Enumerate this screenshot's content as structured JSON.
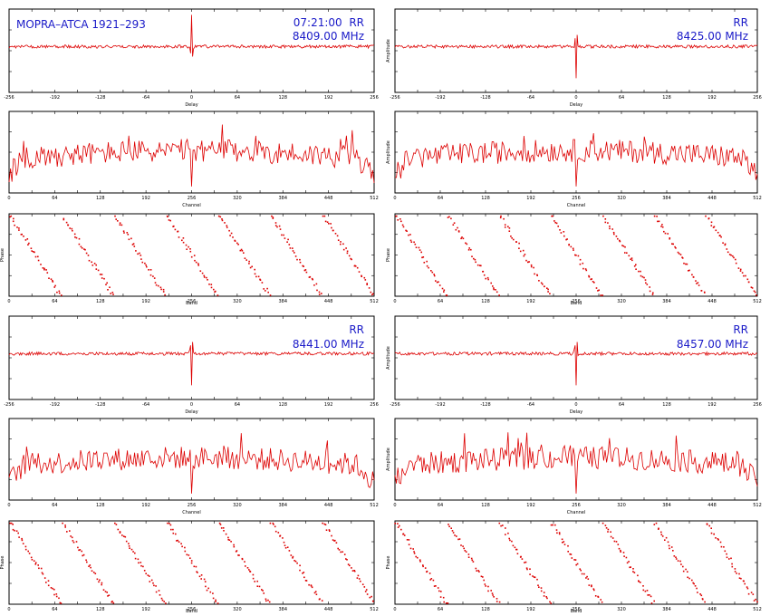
{
  "source": "MOPRA–ATCA 1921–293",
  "colors": {
    "trace": "#dd0000",
    "header_text": "#1a1ac8",
    "axis": "#000000"
  },
  "axis_labels": {
    "delay": "Delay",
    "channel": "Channel",
    "amplitude": "Amplitude",
    "phase": "Phase",
    "band": "Band"
  },
  "blocks": [
    {
      "time": "07:21:00",
      "pol": "RR",
      "freq": "8409.00 MHz"
    },
    {
      "time": "",
      "pol": "RR",
      "freq": "8425.00 MHz"
    },
    {
      "time": "",
      "pol": "RR",
      "freq": "8441.00 MHz"
    },
    {
      "time": "",
      "pol": "RR",
      "freq": "8457.00 MHz"
    }
  ],
  "chart_data": [
    {
      "type": "line",
      "title": "MOPRA–ATCA 1921–293 07:21:00 RR 8409.00 MHz",
      "xlabel": "Delay",
      "ylabel": "",
      "xlim": [
        -256,
        256
      ],
      "peak_x": 0,
      "peak_dir": "up",
      "grid": false,
      "legend": "none"
    },
    {
      "type": "line",
      "xlabel": "Channel",
      "ylabel": "",
      "xlim": [
        0,
        512
      ],
      "ylim": [
        0,
        6
      ],
      "peak_x": 256,
      "grid": false,
      "legend": "none"
    },
    {
      "type": "scatter",
      "xlabel": "Band",
      "ylabel": "Phase",
      "xlim": [
        0,
        512
      ],
      "ylim": [
        -180,
        180
      ],
      "phase_wraps": 7,
      "grid": false,
      "legend": "none"
    },
    {
      "type": "line",
      "title": "RR 8425.00 MHz",
      "xlabel": "Delay",
      "ylabel": "Amplitude",
      "xlim": [
        -256,
        256
      ],
      "peak_x": 0,
      "peak_dir": "down",
      "grid": false,
      "legend": "none"
    },
    {
      "type": "line",
      "xlabel": "Channel",
      "ylabel": "Amplitude",
      "xlim": [
        0,
        512
      ],
      "ylim": [
        0,
        6
      ],
      "peak_x": 256,
      "grid": false,
      "legend": "none"
    },
    {
      "type": "scatter",
      "xlabel": "Band",
      "ylabel": "Phase",
      "xlim": [
        0,
        512
      ],
      "ylim": [
        -180,
        180
      ],
      "phase_wraps": 7,
      "grid": false,
      "legend": "none"
    },
    {
      "type": "line",
      "title": "RR 8441.00 MHz",
      "xlabel": "Delay",
      "ylabel": "",
      "xlim": [
        -256,
        256
      ],
      "peak_x": 0,
      "peak_dir": "down",
      "grid": false,
      "legend": "none"
    },
    {
      "type": "line",
      "xlabel": "Channel",
      "ylabel": "",
      "xlim": [
        0,
        512
      ],
      "ylim": [
        0,
        6
      ],
      "peak_x": 256,
      "grid": false,
      "legend": "none"
    },
    {
      "type": "scatter",
      "xlabel": "Band",
      "ylabel": "Phase",
      "xlim": [
        0,
        512
      ],
      "ylim": [
        -180,
        180
      ],
      "phase_wraps": 7,
      "grid": false,
      "legend": "none"
    },
    {
      "type": "line",
      "title": "RR 8457.00 MHz",
      "xlabel": "Delay",
      "ylabel": "Amplitude",
      "xlim": [
        -256,
        256
      ],
      "peak_x": 0,
      "peak_dir": "down",
      "grid": false,
      "legend": "none"
    },
    {
      "type": "line",
      "xlabel": "Channel",
      "ylabel": "Amplitude",
      "xlim": [
        0,
        512
      ],
      "ylim": [
        0,
        6
      ],
      "peak_x": 256,
      "grid": false,
      "legend": "none"
    },
    {
      "type": "scatter",
      "xlabel": "Band",
      "ylabel": "Phase",
      "xlim": [
        0,
        512
      ],
      "ylim": [
        -180,
        180
      ],
      "phase_wraps": 7,
      "grid": false,
      "legend": "none"
    }
  ]
}
